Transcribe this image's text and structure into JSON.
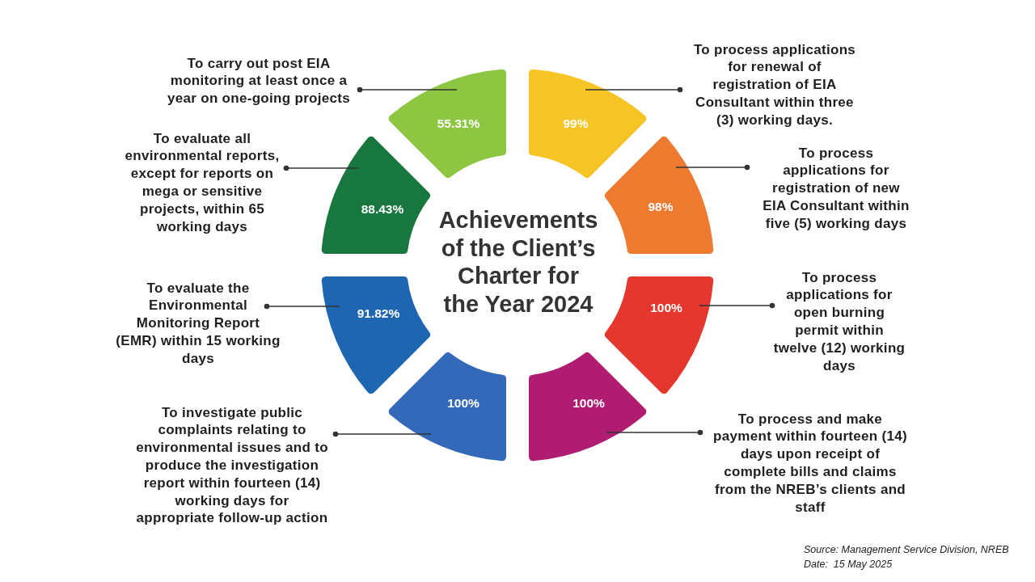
{
  "chart_data": {
    "type": "other",
    "title": "Achievements of the Client’s Charter for the Year 2024",
    "categories": [
      "To process applications for renewal of registration of EIA Consultant within three (3) working days.",
      "To process applications for registration of new EIA Consultant within five (5) working days",
      "To process applications for open burning permit within twelve (12) working days",
      "To process and make payment within fourteen (14) days upon receipt of complete bills and claims from the NREB’s clients and staff",
      "To investigate public complaints relating to environmental issues and to produce the investigation report within fourteen (14) working days for appropriate follow-up action",
      "To evaluate the Environmental Monitoring Report (EMR) within 15 working days",
      "To evaluate all environmental reports, except for reports on mega or sensitive projects, within 65 working days",
      "To carry out post EIA monitoring at least once a year on one-going projects"
    ],
    "values": [
      99,
      98,
      100,
      100,
      100,
      91.82,
      88.43,
      55.31
    ],
    "value_labels": [
      "99%",
      "98%",
      "100%",
      "100%",
      "100%",
      "91.82%",
      "88.43%",
      "55.31%"
    ],
    "colors": [
      "#f6c424",
      "#ee7a30",
      "#e6372f",
      "#b01c72",
      "#3468b8",
      "#1e66b2",
      "#17773f",
      "#8dc641"
    ],
    "annotations": [
      "Source: Management Service Division, NREB",
      "Date:  15 May 2025"
    ]
  }
}
